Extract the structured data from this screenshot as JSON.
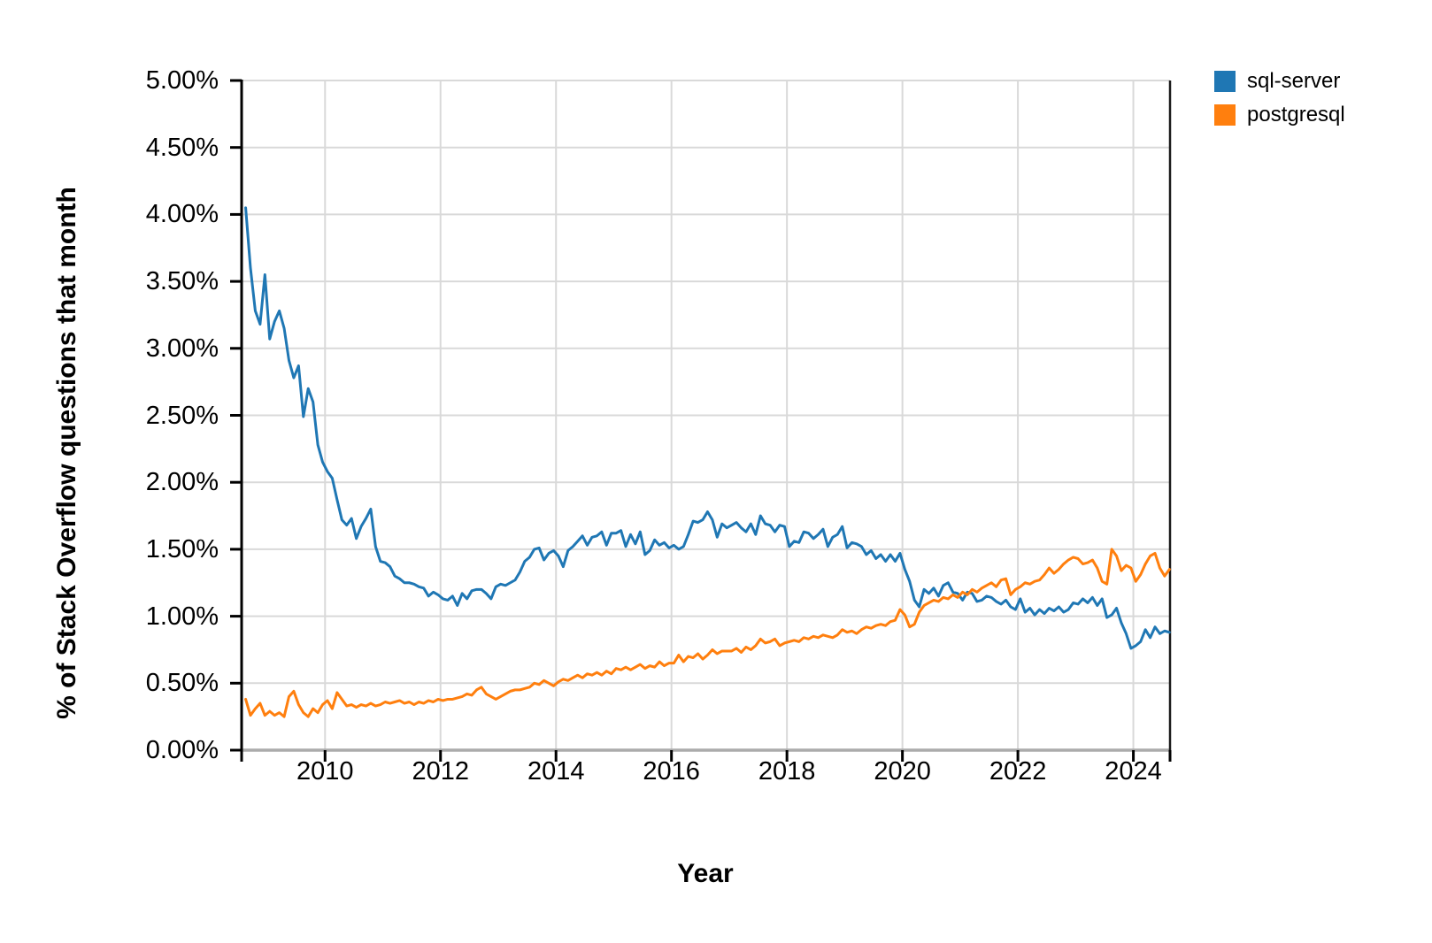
{
  "chart_data": {
    "type": "line",
    "title": "",
    "xlabel": "Year",
    "ylabel": "% of Stack Overflow questions that month",
    "x_unit": "months",
    "x_start_month": "2008-08",
    "x_end_month": "2024-08",
    "x_domain": [
      2008.555,
      2024.635
    ],
    "y_domain": [
      0,
      5
    ],
    "grid": true,
    "legend_position": "top-right",
    "x_ticks": [
      {
        "value": 2010,
        "label": "2010"
      },
      {
        "value": 2012,
        "label": "2012"
      },
      {
        "value": 2014,
        "label": "2014"
      },
      {
        "value": 2016,
        "label": "2016"
      },
      {
        "value": 2018,
        "label": "2018"
      },
      {
        "value": 2020,
        "label": "2020"
      },
      {
        "value": 2022,
        "label": "2022"
      },
      {
        "value": 2024,
        "label": "2024"
      }
    ],
    "y_ticks": [
      {
        "value": 5.0,
        "label": "5.00%"
      },
      {
        "value": 4.5,
        "label": "4.50%"
      },
      {
        "value": 4.0,
        "label": "4.00%"
      },
      {
        "value": 3.5,
        "label": "3.50%"
      },
      {
        "value": 3.0,
        "label": "3.00%"
      },
      {
        "value": 2.5,
        "label": "2.50%"
      },
      {
        "value": 2.0,
        "label": "2.00%"
      },
      {
        "value": 1.5,
        "label": "1.50%"
      },
      {
        "value": 1.0,
        "label": "1.00%"
      },
      {
        "value": 0.5,
        "label": "0.50%"
      },
      {
        "value": 0.0,
        "label": "0.00%"
      }
    ],
    "series": [
      {
        "name": "sql-server",
        "color": "#1f77b4",
        "values": [
          4.05,
          3.6,
          3.28,
          3.18,
          3.55,
          3.07,
          3.2,
          3.28,
          3.15,
          2.91,
          2.78,
          2.87,
          2.49,
          2.7,
          2.6,
          2.28,
          2.15,
          2.08,
          2.03,
          1.87,
          1.72,
          1.68,
          1.73,
          1.58,
          1.67,
          1.73,
          1.8,
          1.52,
          1.41,
          1.4,
          1.37,
          1.3,
          1.28,
          1.25,
          1.25,
          1.24,
          1.22,
          1.21,
          1.15,
          1.18,
          1.16,
          1.13,
          1.12,
          1.15,
          1.08,
          1.17,
          1.13,
          1.19,
          1.2,
          1.2,
          1.17,
          1.13,
          1.22,
          1.24,
          1.23,
          1.25,
          1.27,
          1.33,
          1.41,
          1.44,
          1.5,
          1.51,
          1.42,
          1.47,
          1.49,
          1.45,
          1.37,
          1.49,
          1.52,
          1.56,
          1.6,
          1.53,
          1.59,
          1.6,
          1.63,
          1.53,
          1.62,
          1.62,
          1.64,
          1.52,
          1.61,
          1.54,
          1.63,
          1.46,
          1.49,
          1.57,
          1.53,
          1.55,
          1.51,
          1.53,
          1.5,
          1.52,
          1.61,
          1.71,
          1.7,
          1.72,
          1.78,
          1.72,
          1.59,
          1.69,
          1.66,
          1.68,
          1.7,
          1.66,
          1.63,
          1.69,
          1.61,
          1.75,
          1.69,
          1.68,
          1.63,
          1.68,
          1.67,
          1.52,
          1.56,
          1.55,
          1.63,
          1.62,
          1.58,
          1.61,
          1.65,
          1.52,
          1.59,
          1.61,
          1.67,
          1.51,
          1.55,
          1.54,
          1.52,
          1.46,
          1.49,
          1.43,
          1.46,
          1.41,
          1.46,
          1.41,
          1.47,
          1.35,
          1.26,
          1.12,
          1.07,
          1.2,
          1.17,
          1.21,
          1.15,
          1.23,
          1.25,
          1.18,
          1.17,
          1.12,
          1.18,
          1.17,
          1.11,
          1.12,
          1.15,
          1.14,
          1.11,
          1.09,
          1.12,
          1.07,
          1.05,
          1.13,
          1.03,
          1.06,
          1.01,
          1.05,
          1.02,
          1.06,
          1.04,
          1.07,
          1.03,
          1.05,
          1.1,
          1.09,
          1.13,
          1.1,
          1.14,
          1.08,
          1.13,
          0.99,
          1.01,
          1.06,
          0.95,
          0.87,
          0.76,
          0.78,
          0.81,
          0.9,
          0.84,
          0.92,
          0.87,
          0.89,
          0.88
        ]
      },
      {
        "name": "postgresql",
        "color": "#ff7f0e",
        "values": [
          0.38,
          0.26,
          0.31,
          0.35,
          0.26,
          0.29,
          0.26,
          0.28,
          0.25,
          0.4,
          0.44,
          0.34,
          0.28,
          0.25,
          0.31,
          0.28,
          0.34,
          0.37,
          0.31,
          0.43,
          0.38,
          0.33,
          0.34,
          0.32,
          0.34,
          0.33,
          0.35,
          0.33,
          0.34,
          0.36,
          0.35,
          0.36,
          0.37,
          0.35,
          0.36,
          0.34,
          0.36,
          0.35,
          0.37,
          0.36,
          0.38,
          0.37,
          0.38,
          0.38,
          0.39,
          0.4,
          0.42,
          0.41,
          0.45,
          0.47,
          0.42,
          0.4,
          0.38,
          0.4,
          0.42,
          0.44,
          0.45,
          0.45,
          0.46,
          0.47,
          0.5,
          0.49,
          0.52,
          0.5,
          0.48,
          0.51,
          0.53,
          0.52,
          0.54,
          0.56,
          0.54,
          0.57,
          0.56,
          0.58,
          0.56,
          0.59,
          0.57,
          0.61,
          0.6,
          0.62,
          0.6,
          0.62,
          0.64,
          0.61,
          0.63,
          0.62,
          0.66,
          0.63,
          0.65,
          0.65,
          0.71,
          0.66,
          0.7,
          0.69,
          0.72,
          0.68,
          0.71,
          0.75,
          0.72,
          0.74,
          0.74,
          0.74,
          0.76,
          0.73,
          0.77,
          0.75,
          0.78,
          0.83,
          0.8,
          0.81,
          0.83,
          0.78,
          0.8,
          0.81,
          0.82,
          0.81,
          0.84,
          0.83,
          0.85,
          0.84,
          0.86,
          0.85,
          0.84,
          0.86,
          0.9,
          0.88,
          0.89,
          0.87,
          0.9,
          0.92,
          0.91,
          0.93,
          0.94,
          0.93,
          0.96,
          0.97,
          1.05,
          1.01,
          0.92,
          0.94,
          1.03,
          1.08,
          1.1,
          1.12,
          1.11,
          1.14,
          1.13,
          1.16,
          1.14,
          1.18,
          1.16,
          1.2,
          1.18,
          1.21,
          1.23,
          1.25,
          1.22,
          1.27,
          1.28,
          1.16,
          1.2,
          1.22,
          1.25,
          1.24,
          1.26,
          1.27,
          1.31,
          1.36,
          1.32,
          1.35,
          1.39,
          1.42,
          1.44,
          1.43,
          1.39,
          1.4,
          1.42,
          1.36,
          1.26,
          1.24,
          1.5,
          1.45,
          1.34,
          1.38,
          1.36,
          1.26,
          1.31,
          1.39,
          1.45,
          1.47,
          1.36,
          1.3,
          1.35
        ]
      }
    ],
    "colors": {
      "background": "#ffffff",
      "grid": "#d9d9d9",
      "axis_left": "#000000",
      "axis_right": "#1a1a1a",
      "axis_bottom": "#ababab",
      "tick": "#000000",
      "text": "#000000"
    }
  }
}
